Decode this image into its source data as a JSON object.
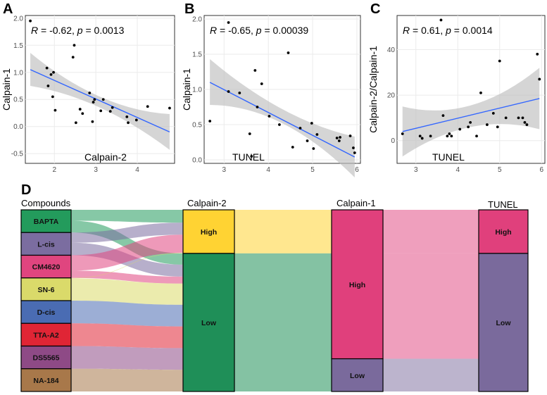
{
  "chart_data": [
    {
      "panel": "A",
      "type": "scatter",
      "xlabel": "Calpain-2",
      "ylabel": "Calpain-1",
      "stat_r": "-0.62",
      "stat_p": "0.0013",
      "xlim": [
        1.3,
        4.9
      ],
      "ylim": [
        -0.68,
        2.05
      ],
      "xticks": [
        2,
        3,
        4
      ],
      "yticks": [
        -0.5,
        0.0,
        0.5,
        1.0,
        1.5,
        2.0
      ],
      "x": [
        1.42,
        1.82,
        1.85,
        1.92,
        1.96,
        1.98,
        2.02,
        2.45,
        2.48,
        2.52,
        2.62,
        2.68,
        2.85,
        2.92,
        2.94,
        2.97,
        3.12,
        3.18,
        3.35,
        3.4,
        3.75,
        3.78,
        3.98,
        4.25,
        4.78
      ],
      "y": [
        1.95,
        1.08,
        0.75,
        0.96,
        0.55,
        1.0,
        0.3,
        1.28,
        1.5,
        0.07,
        0.32,
        0.24,
        0.62,
        0.09,
        0.45,
        0.5,
        0.29,
        0.5,
        0.28,
        0.35,
        0.18,
        0.07,
        0.12,
        0.37,
        0.34
      ],
      "fit": {
        "x": [
          1.42,
          4.78
        ],
        "y": [
          1.05,
          -0.1
        ],
        "ci_start": [
          0.75,
          1.36
        ],
        "ci_mid": [
          0.35,
          0.55
        ],
        "ci_end": [
          -0.43,
          0.23
        ]
      }
    },
    {
      "panel": "B",
      "type": "scatter",
      "xlabel": "TUNEL",
      "ylabel": "Calpain-1",
      "stat_r": "-0.65",
      "stat_p": "0.00039",
      "xlim": [
        2.55,
        6.08
      ],
      "ylim": [
        -0.05,
        2.05
      ],
      "xticks": [
        3,
        4,
        5,
        6
      ],
      "yticks": [
        0.0,
        0.5,
        1.0,
        1.5,
        2.0
      ],
      "x": [
        2.68,
        3.1,
        3.1,
        3.35,
        3.58,
        3.62,
        3.7,
        3.75,
        3.85,
        4.02,
        4.25,
        4.45,
        4.55,
        4.72,
        4.88,
        4.98,
        5.02,
        5.1,
        5.55,
        5.6,
        5.62,
        5.85,
        5.92,
        5.95
      ],
      "y": [
        0.55,
        1.95,
        0.97,
        0.95,
        0.37,
        0.05,
        1.27,
        0.75,
        1.08,
        0.62,
        0.5,
        1.52,
        0.18,
        0.45,
        0.27,
        0.52,
        0.16,
        0.36,
        0.31,
        0.27,
        0.32,
        0.34,
        0.17,
        0.1
      ],
      "fit": {
        "x": [
          2.68,
          5.95
        ],
        "y": [
          1.1,
          0.04
        ],
        "ci_start": [
          0.78,
          1.43
        ],
        "ci_mid": [
          0.52,
          0.72
        ],
        "ci_end": [
          -0.25,
          0.33
        ]
      }
    },
    {
      "panel": "C",
      "type": "scatter",
      "xlabel": "TUNEL",
      "ylabel": "Calpain-2/Calpain-1",
      "stat_r": "0.61",
      "stat_p": "0.0014",
      "xlim": [
        2.55,
        6.08
      ],
      "ylim": [
        -10,
        55
      ],
      "xticks": [
        3,
        4,
        5,
        6
      ],
      "yticks": [
        0,
        20,
        40
      ],
      "x": [
        2.68,
        3.1,
        3.15,
        3.35,
        3.6,
        3.65,
        3.75,
        3.8,
        3.85,
        4.05,
        4.25,
        4.3,
        4.45,
        4.55,
        4.7,
        4.85,
        4.95,
        5.0,
        5.15,
        5.45,
        5.55,
        5.6,
        5.65,
        5.9,
        5.95
      ],
      "y": [
        3,
        2,
        1,
        2,
        53,
        11,
        2,
        3,
        2,
        5,
        6,
        8,
        2,
        21,
        7,
        12,
        6,
        35,
        10,
        10,
        10,
        8,
        7,
        38,
        27
      ],
      "fit": {
        "x": [
          2.68,
          5.95
        ],
        "y": [
          4,
          18.5
        ],
        "ci_start": [
          -7,
          15
        ],
        "ci_mid": [
          6,
          15.5
        ],
        "ci_end": [
          5,
          32
        ]
      }
    },
    {
      "panel": "D",
      "type": "sankey",
      "columns": [
        "Compounds",
        "Calpain-2",
        "Calpain-1",
        "TUNEL"
      ],
      "compounds": [
        {
          "name": "BAPTA",
          "color": "#239b5c"
        },
        {
          "name": "L-cis",
          "color": "#7b6da0"
        },
        {
          "name": "CM4620",
          "color": "#e0457f"
        },
        {
          "name": "SN-6",
          "color": "#dada6a"
        },
        {
          "name": "D-cis",
          "color": "#4a6cb3"
        },
        {
          "name": "TTA-A2",
          "color": "#e02535"
        },
        {
          "name": "DS5565",
          "color": "#8e4a86"
        },
        {
          "name": "NA-184",
          "color": "#a8784a"
        }
      ],
      "calpain2": [
        {
          "name": "High",
          "color": "#ffd333",
          "share": 0.24
        },
        {
          "name": "Low",
          "color": "#1f8f58",
          "share": 0.76
        }
      ],
      "calpain1": [
        {
          "name": "High",
          "color": "#e0407c",
          "share": 0.82
        },
        {
          "name": "Low",
          "color": "#7a6a9c",
          "share": 0.18
        }
      ],
      "tunel": [
        {
          "name": "High",
          "color": "#e0407c",
          "share": 0.24
        },
        {
          "name": "Low",
          "color": "#7a6a9c",
          "share": 0.76
        }
      ]
    }
  ]
}
